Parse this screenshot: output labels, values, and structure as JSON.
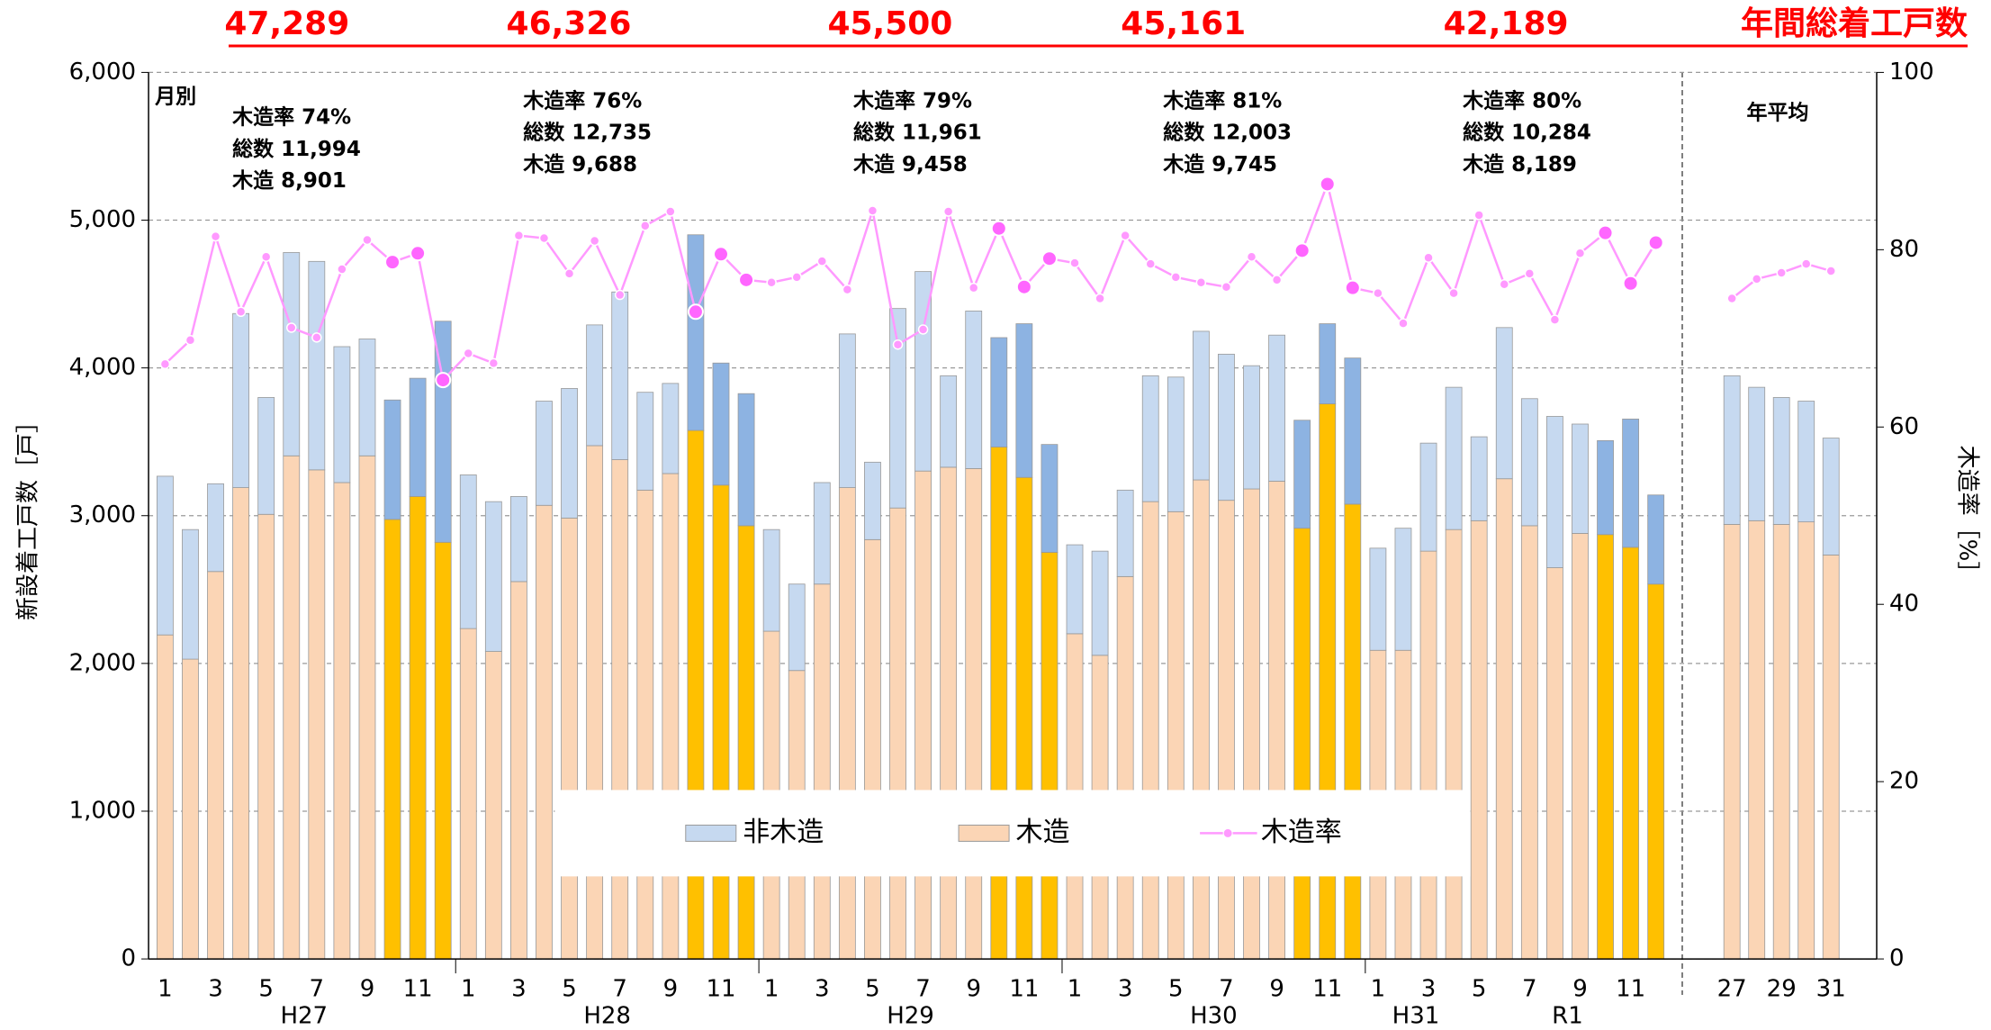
{
  "chart_data": {
    "type": "bar",
    "title": "年間総着工戸数",
    "annual_totals": {
      "values": [
        47289,
        46326,
        45500,
        45161,
        42189
      ],
      "value_labels": [
        "47,289",
        "46,326",
        "45,500",
        "45,161",
        "42,189"
      ]
    },
    "year_notes": [
      [
        "木造率  74%",
        "総数  11,994",
        "木造    8,901"
      ],
      [
        "木造率  76%",
        "総数  12,735",
        "木造    9,688"
      ],
      [
        "木造率  79%",
        "総数  11,961",
        "木造    9,458"
      ],
      [
        "木造率  81%",
        "総数  12,003",
        "木造    9,745"
      ],
      [
        "木造率  80%",
        "総数  10,284",
        "木造    8,189"
      ]
    ],
    "ylabel": "新設着工戸数［戸］",
    "y2label": "木造率［%］",
    "ylim": [
      0,
      6000
    ],
    "yticks": [
      0,
      {
        "value": 1000,
        "label": "1,000"
      },
      {
        "value": 2000,
        "label": "2,000"
      },
      {
        "value": 3000,
        "label": "3,000"
      },
      {
        "value": 4000,
        "label": "4,000"
      },
      {
        "value": 5000,
        "label": "5,000"
      },
      {
        "value": 6000,
        "label": "6,000"
      }
    ],
    "y2lim": [
      0,
      100
    ],
    "y2ticks": [
      0,
      20,
      40,
      60,
      80,
      100
    ],
    "grid": true,
    "series": [
      {
        "name": "非木造",
        "color": "#c6d9f0",
        "highlight_color": "#8db3e2"
      },
      {
        "name": "木造",
        "color": "#fbd5b5",
        "highlight_color": "#ffc000"
      },
      {
        "name": "木造率",
        "color": "#ff99ff",
        "highlight_color": "#ff66ff",
        "axis": "y2"
      }
    ],
    "panels": [
      {
        "label": "月別",
        "groups": [
          {
            "name": "H27",
            "categories": [
              "1",
              null,
              "3",
              null,
              "5",
              null,
              "7",
              null,
              "9",
              null,
              "11",
              null
            ]
          },
          {
            "name": "H28",
            "categories": [
              "1",
              null,
              "3",
              null,
              "5",
              null,
              "7",
              null,
              "9",
              null,
              "11",
              null
            ]
          },
          {
            "name": "H29",
            "categories": [
              "1",
              null,
              "3",
              null,
              "5",
              null,
              "7",
              null,
              "9",
              null,
              "11",
              null
            ]
          },
          {
            "name": "H30",
            "categories": [
              "1",
              null,
              "3",
              null,
              "5",
              null,
              "7",
              null,
              "9",
              null,
              "11",
              null
            ]
          },
          {
            "name": "H31",
            "categories": [
              "1",
              null,
              "3",
              null
            ]
          },
          {
            "name": "R1",
            "categories": [
              "5",
              null,
              "7",
              null,
              "9",
              null,
              "11",
              null
            ]
          }
        ],
        "series": [
          {
            "values": [
              1074,
              877,
              594,
              1178,
              791,
              1376,
              1411,
              920,
              791,
              808,
              800,
              1496,
              1040,
              1014,
              576,
              705,
              877,
              817,
              1135,
              662,
              610,
              1324,
              826,
              894,
              688,
              585,
              687,
              1040,
              524,
              1350,
              1350,
              619,
              1066,
              740,
              1040,
              730,
              602,
              705,
              585,
              852,
              911,
              1006,
              989,
              834,
              989,
              731,
              542,
              989,
              691,
              826,
              731,
              963,
              568,
              1023,
              860,
              1024,
              740,
              636,
              868,
              603
            ],
            "colors": [
              "#c6d9f0",
              "#c6d9f0",
              "#c6d9f0",
              "#c6d9f0",
              "#c6d9f0",
              "#c6d9f0",
              "#c6d9f0",
              "#c6d9f0",
              "#c6d9f0",
              "#8db3e2",
              "#8db3e2",
              "#8db3e2",
              "#c6d9f0",
              "#c6d9f0",
              "#c6d9f0",
              "#c6d9f0",
              "#c6d9f0",
              "#c6d9f0",
              "#c6d9f0",
              "#c6d9f0",
              "#c6d9f0",
              "#8db3e2",
              "#8db3e2",
              "#8db3e2",
              "#c6d9f0",
              "#c6d9f0",
              "#c6d9f0",
              "#c6d9f0",
              "#c6d9f0",
              "#c6d9f0",
              "#c6d9f0",
              "#c6d9f0",
              "#c6d9f0",
              "#8db3e2",
              "#8db3e2",
              "#8db3e2",
              "#c6d9f0",
              "#c6d9f0",
              "#c6d9f0",
              "#c6d9f0",
              "#c6d9f0",
              "#c6d9f0",
              "#c6d9f0",
              "#c6d9f0",
              "#c6d9f0",
              "#8db3e2",
              "#8db3e2",
              "#8db3e2",
              "#c6d9f0",
              "#c6d9f0",
              "#c6d9f0",
              "#c6d9f0",
              "#c6d9f0",
              "#c6d9f0",
              "#c6d9f0",
              "#c6d9f0",
              "#c6d9f0",
              "#8db3e2",
              "#8db3e2",
              "#8db3e2"
            ]
          },
          {
            "values": [
              2193,
              2029,
              2622,
              3190,
              3009,
              3405,
              3310,
              3224,
              3405,
              2975,
              3130,
              2820,
              2236,
              2081,
              2554,
              3070,
              2984,
              3474,
              3379,
              3173,
              3285,
              3577,
              3207,
              2932,
              2218,
              1952,
              2537,
              3190,
              2838,
              3052,
              3302,
              3328,
              3319,
              3465,
              3259,
              2752,
              2201,
              2055,
              2588,
              3095,
              3027,
              3242,
              3104,
              3181,
              3233,
              2915,
              3757,
              3078,
              2089,
              2089,
              2760,
              2906,
              2966,
              3250,
              2932,
              2648,
              2880,
              2872,
              2786,
              2537
            ],
            "colors": [
              "#fbd5b5",
              "#fbd5b5",
              "#fbd5b5",
              "#fbd5b5",
              "#fbd5b5",
              "#fbd5b5",
              "#fbd5b5",
              "#fbd5b5",
              "#fbd5b5",
              "#ffc000",
              "#ffc000",
              "#ffc000",
              "#fbd5b5",
              "#fbd5b5",
              "#fbd5b5",
              "#fbd5b5",
              "#fbd5b5",
              "#fbd5b5",
              "#fbd5b5",
              "#fbd5b5",
              "#fbd5b5",
              "#ffc000",
              "#ffc000",
              "#ffc000",
              "#fbd5b5",
              "#fbd5b5",
              "#fbd5b5",
              "#fbd5b5",
              "#fbd5b5",
              "#fbd5b5",
              "#fbd5b5",
              "#fbd5b5",
              "#fbd5b5",
              "#ffc000",
              "#ffc000",
              "#ffc000",
              "#fbd5b5",
              "#fbd5b5",
              "#fbd5b5",
              "#fbd5b5",
              "#fbd5b5",
              "#fbd5b5",
              "#fbd5b5",
              "#fbd5b5",
              "#fbd5b5",
              "#ffc000",
              "#ffc000",
              "#ffc000",
              "#fbd5b5",
              "#fbd5b5",
              "#fbd5b5",
              "#fbd5b5",
              "#fbd5b5",
              "#fbd5b5",
              "#fbd5b5",
              "#fbd5b5",
              "#fbd5b5",
              "#ffc000",
              "#ffc000",
              "#ffc000"
            ]
          },
          {
            "values": [
              67.1,
              69.8,
              81.5,
              73.0,
              79.2,
              71.2,
              70.1,
              77.8,
              81.1,
              78.6,
              79.6,
              65.3,
              68.3,
              67.2,
              81.6,
              81.3,
              77.3,
              81.0,
              74.9,
              82.7,
              84.3,
              73.0,
              79.5,
              76.6,
              76.3,
              76.9,
              78.7,
              75.5,
              84.4,
              69.3,
              71.0,
              84.3,
              75.7,
              82.4,
              75.8,
              79.0,
              78.5,
              74.5,
              81.6,
              78.4,
              76.9,
              76.3,
              75.8,
              79.2,
              76.6,
              79.9,
              87.4,
              75.7,
              75.1,
              71.7,
              79.1,
              75.1,
              83.9,
              76.1,
              77.3,
              72.1,
              79.6,
              81.9,
              76.2,
              80.8
            ],
            "colors": [
              "#ff99ff",
              "#ff99ff",
              "#ff99ff",
              "#ff99ff",
              "#ff99ff",
              "#ff99ff",
              "#ff99ff",
              "#ff99ff",
              "#ff99ff",
              "#ff66ff",
              "#ff66ff",
              "#ff66ff",
              "#ff99ff",
              "#ff99ff",
              "#ff99ff",
              "#ff99ff",
              "#ff99ff",
              "#ff99ff",
              "#ff99ff",
              "#ff99ff",
              "#ff99ff",
              "#ff66ff",
              "#ff66ff",
              "#ff66ff",
              "#ff99ff",
              "#ff99ff",
              "#ff99ff",
              "#ff99ff",
              "#ff99ff",
              "#ff99ff",
              "#ff99ff",
              "#ff99ff",
              "#ff99ff",
              "#ff66ff",
              "#ff66ff",
              "#ff66ff",
              "#ff99ff",
              "#ff99ff",
              "#ff99ff",
              "#ff99ff",
              "#ff99ff",
              "#ff99ff",
              "#ff99ff",
              "#ff99ff",
              "#ff99ff",
              "#ff66ff",
              "#ff66ff",
              "#ff66ff",
              "#ff99ff",
              "#ff99ff",
              "#ff99ff",
              "#ff99ff",
              "#ff99ff",
              "#ff99ff",
              "#ff99ff",
              "#ff99ff",
              "#ff99ff",
              "#ff66ff",
              "#ff66ff",
              "#ff66ff"
            ]
          }
        ]
      },
      {
        "label": "年平均",
        "groups": [
          {
            "categories": [
              "27",
              null,
              "29",
              null,
              "31"
            ]
          }
        ],
        "series": [
          {
            "values": [
              1006,
              903,
              859,
              817,
              791
            ],
            "colors": [
              "#c6d9f0",
              "#c6d9f0",
              "#c6d9f0",
              "#c6d9f0",
              "#c6d9f0"
            ]
          },
          {
            "values": [
              2941,
              2966,
              2941,
              2958,
              2734
            ],
            "colors": [
              "#fbd5b5",
              "#fbd5b5",
              "#fbd5b5",
              "#fbd5b5",
              "#fbd5b5"
            ]
          },
          {
            "values": [
              74.5,
              76.7,
              77.4,
              78.4,
              77.6
            ],
            "colors": [
              "#ff99ff",
              "#ff99ff",
              "#ff99ff",
              "#ff99ff",
              "#ff99ff"
            ]
          }
        ]
      }
    ]
  }
}
